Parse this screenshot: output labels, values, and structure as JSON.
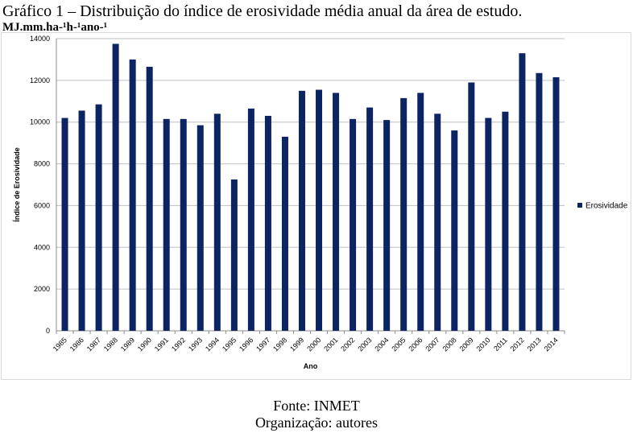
{
  "caption": "Gráfico 1 – Distribuição do índice de erosividade média anual da área de estudo.",
  "units_label": "MJ.mm.ha-¹h-¹ano-¹",
  "source": "Fonte: INMET",
  "organization": "Organização: autores",
  "chart_data": {
    "type": "bar",
    "xlabel": "Ano",
    "ylabel": "Índice de Erosividade",
    "ylim": [
      0,
      14000
    ],
    "yticks": [
      0,
      2000,
      4000,
      6000,
      8000,
      10000,
      12000,
      14000
    ],
    "grid": true,
    "legend_position": "right",
    "categories": [
      "1985",
      "1986",
      "1987",
      "1988",
      "1989",
      "1990",
      "1991",
      "1992",
      "1993",
      "1994",
      "1995",
      "1996",
      "1997",
      "1998",
      "1999",
      "2000",
      "2001",
      "2002",
      "2003",
      "2004",
      "2005",
      "2006",
      "2007",
      "2008",
      "2009",
      "2010",
      "2011",
      "2012",
      "2013",
      "2014"
    ],
    "series": [
      {
        "name": "Erosividade",
        "color": "#0c2461",
        "values": [
          10200,
          10550,
          10850,
          13750,
          13000,
          12650,
          10150,
          10150,
          9850,
          10400,
          7250,
          10650,
          10300,
          9300,
          11500,
          11550,
          11400,
          10150,
          10700,
          10100,
          11150,
          11400,
          10400,
          9600,
          11900,
          10200,
          10500,
          13300,
          12350,
          12150
        ]
      }
    ]
  }
}
